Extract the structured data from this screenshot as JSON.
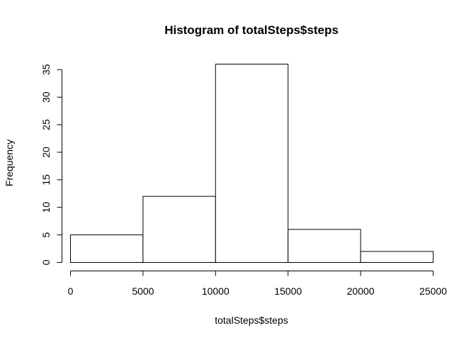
{
  "chart_data": {
    "type": "bar",
    "subtype": "histogram",
    "title": "Histogram of totalSteps$steps",
    "xlabel": "totalSteps$steps",
    "ylabel": "Frequency",
    "bins": [
      {
        "start": 0,
        "end": 5000,
        "value": 5
      },
      {
        "start": 5000,
        "end": 10000,
        "value": 12
      },
      {
        "start": 10000,
        "end": 15000,
        "value": 36
      },
      {
        "start": 15000,
        "end": 20000,
        "value": 6
      },
      {
        "start": 20000,
        "end": 25000,
        "value": 2
      }
    ],
    "xlim": [
      0,
      25000
    ],
    "ylim": [
      0,
      36
    ],
    "x_ticks": [
      0,
      5000,
      10000,
      15000,
      20000,
      25000
    ],
    "x_tick_labels": [
      "0",
      "5000",
      "10000",
      "15000",
      "20000",
      "25000"
    ],
    "y_ticks": [
      0,
      5,
      10,
      15,
      20,
      25,
      30,
      35
    ],
    "y_tick_labels": [
      "0",
      "5",
      "10",
      "15",
      "20",
      "25",
      "30",
      "35"
    ],
    "grid": false,
    "colors": {
      "bar_fill": "#ffffff",
      "bar_stroke": "#000000",
      "axis": "#000000"
    }
  }
}
